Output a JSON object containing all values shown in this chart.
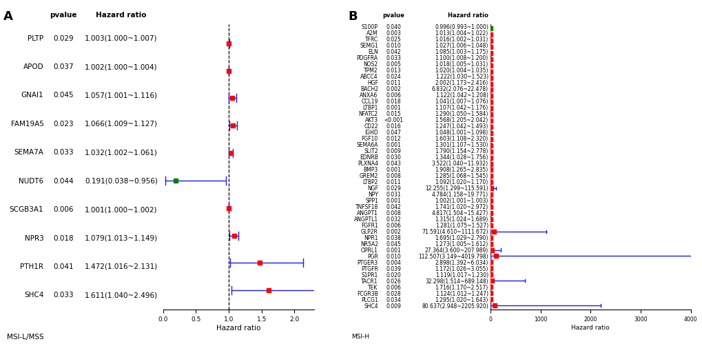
{
  "panel_A": {
    "title": "A",
    "subtitle": "MSI-L/MSS",
    "xlabel": "Hazard ratio",
    "genes": [
      "PLTP",
      "APOD",
      "GNAI1",
      "FAM19A5",
      "SEMA7A",
      "NUDT6",
      "SCGB3A1",
      "NPR3",
      "PTH1R",
      "SHC4"
    ],
    "pvalues": [
      "0.029",
      "0.037",
      "0.045",
      "0.023",
      "0.033",
      "0.044",
      "0.006",
      "0.018",
      "0.041",
      "0.033"
    ],
    "hr_labels": [
      "1.003(1.000~1.007)",
      "1.002(1.000~1.004)",
      "1.057(1.001~1.116)",
      "1.066(1.009~1.127)",
      "1.032(1.002~1.061)",
      "0.191(0.038~0.956)",
      "1.001(1.000~1.002)",
      "1.079(1.013~1.149)",
      "1.472(1.016~2.131)",
      "1.611(1.040~2.496)"
    ],
    "hr": [
      1.003,
      1.002,
      1.057,
      1.066,
      1.032,
      0.191,
      1.001,
      1.079,
      1.472,
      1.611
    ],
    "ci_low": [
      1.0,
      1.0,
      1.001,
      1.009,
      1.002,
      0.038,
      1.0,
      1.013,
      1.016,
      1.04
    ],
    "ci_high": [
      1.007,
      1.004,
      1.116,
      1.127,
      1.061,
      0.956,
      1.002,
      1.149,
      2.131,
      2.496
    ],
    "colors": [
      "red",
      "red",
      "red",
      "red",
      "red",
      "green",
      "red",
      "red",
      "red",
      "red"
    ],
    "xlim": [
      0.0,
      2.3
    ],
    "xticks": [
      0.0,
      0.5,
      1.0,
      1.5,
      2.0
    ],
    "vline": 1.0
  },
  "panel_B": {
    "title": "B",
    "subtitle": "MSI-H",
    "xlabel": "Hazard ratio",
    "genes": [
      "S100P",
      "A2M",
      "TFRC",
      "SEMG1",
      "ELN",
      "PDGFRA",
      "NOS2",
      "TPM2",
      "ABCC4",
      "HGF",
      "BACH2",
      "ANXA6",
      "CCL19",
      "LTBP1",
      "NFATC2",
      "AKT3",
      "CD22",
      "IGHD",
      "FGF10",
      "SEMA6A",
      "SLIT2",
      "EDNRB",
      "PLXNA4",
      "BMP3",
      "GREM2",
      "LTBP2",
      "NGF",
      "NPY",
      "SPP1",
      "TNFSF18",
      "ANGPT1",
      "ANGPTL1",
      "FGFR1",
      "GLP2R",
      "NPR1",
      "NR5A2",
      "OPRL1",
      "PGR",
      "PTGER3",
      "PTGFR",
      "S1PR1",
      "TACR1",
      "TEK",
      "FCGR3B",
      "PLCG1",
      "SHC4"
    ],
    "pvalues": [
      "0.040",
      "0.003",
      "0.025",
      "0.010",
      "0.042",
      "0.033",
      "0.005",
      "0.013",
      "0.024",
      "0.011",
      "0.002",
      "0.006",
      "0.018",
      "0.001",
      "0.015",
      "<0.001",
      "0.016",
      "0.047",
      "0.012",
      "0.001",
      "0.009",
      "0.030",
      "0.043",
      "0.001",
      "0.008",
      "0.011",
      "0.029",
      "0.031",
      "0.001",
      "0.042",
      "0.008",
      "0.032",
      "0.006",
      "0.002",
      "0.038",
      "0.045",
      "0.001",
      "0.010",
      "0.004",
      "0.039",
      "0.020",
      "0.026",
      "0.006",
      "0.028",
      "0.034",
      "0.009"
    ],
    "hr_labels": [
      "0.996(0.993~1.000)",
      "1.013(1.004~1.022)",
      "1.016(1.002~1.031)",
      "1.027(1.006~1.048)",
      "1.085(1.003~1.175)",
      "1.100(1.008~1.200)",
      "1.018(1.005~1.031)",
      "1.020(1.004~1.035)",
      "1.222(1.030~1.523)",
      "2.002(1.173~2.416)",
      "6.832(2.076~22.478)",
      "1.122(1.042~1.208)",
      "1.041(1.007~1.076)",
      "1.107(1.042~1.176)",
      "1.290(1.050~1.584)",
      "1.568(1.205~2.042)",
      "1.247(1.042~1.493)",
      "1.048(1.001~1.098)",
      "1.603(1.108~2.320)",
      "1.301(1.107~1.530)",
      "1.790(1.154~2.778)",
      "1.344(1.028~1.756)",
      "3.522(1.040~11.932)",
      "1.908(1.265~2.835)",
      "1.285(1.068~1.545)",
      "1.092(1.020~1.170)",
      "12.255(1.299~115.591)",
      "4.784(1.158~19.771)",
      "1.002(1.001~1.003)",
      "1.741(1.020~2.972)",
      "4.817(1.504~15.427)",
      "1.315(1.024~1.689)",
      "1.281(1.075~1.527)",
      "71.591(4.610~1111.672)",
      "1.695(1.029~2.790)",
      "1.273(1.005~1.612)",
      "27.364(3.600~207.989)",
      "112.507(3.149~4019.798)",
      "2.898(1.392~6.034)",
      "1.172(1.026~3.055)",
      "1.119(1.017~1.230)",
      "32.298(1.514~689.148)",
      "1.716(1.170~2.517)",
      "1.124(1.012~1.247)",
      "1.295(1.020~1.643)",
      "80.637(2.948~2205.920)"
    ],
    "hr": [
      0.996,
      1.013,
      1.016,
      1.027,
      1.085,
      1.1,
      1.018,
      1.02,
      1.222,
      2.002,
      6.832,
      1.122,
      1.041,
      1.107,
      1.29,
      1.568,
      1.247,
      1.048,
      1.603,
      1.301,
      1.79,
      1.344,
      3.522,
      1.908,
      1.285,
      1.092,
      12.255,
      4.784,
      1.002,
      1.741,
      4.817,
      1.315,
      1.281,
      71.591,
      1.695,
      1.273,
      27.364,
      112.507,
      2.898,
      1.172,
      1.119,
      32.298,
      1.716,
      1.124,
      1.295,
      80.637
    ],
    "ci_low": [
      0.993,
      1.004,
      1.002,
      1.006,
      1.003,
      1.008,
      1.005,
      1.004,
      1.03,
      1.173,
      2.076,
      1.042,
      1.007,
      1.042,
      1.05,
      1.205,
      1.042,
      1.001,
      1.108,
      1.107,
      1.154,
      1.028,
      1.04,
      1.265,
      1.068,
      1.02,
      1.299,
      1.158,
      1.001,
      1.02,
      1.504,
      1.024,
      1.075,
      4.61,
      1.029,
      1.005,
      3.6,
      3.149,
      1.392,
      1.026,
      1.017,
      1.514,
      1.17,
      1.012,
      1.02,
      2.948
    ],
    "ci_high": [
      1.0,
      1.022,
      1.031,
      1.048,
      1.175,
      1.2,
      1.031,
      1.035,
      1.523,
      2.416,
      22.478,
      1.208,
      1.076,
      1.176,
      1.584,
      2.042,
      1.493,
      1.098,
      2.32,
      1.53,
      2.778,
      1.756,
      11.932,
      2.835,
      1.545,
      1.17,
      115.591,
      19.771,
      1.003,
      2.972,
      15.427,
      1.689,
      1.527,
      1111.672,
      2.79,
      1.612,
      207.989,
      4019.798,
      6.034,
      3.055,
      1.23,
      689.148,
      2.517,
      1.247,
      1.643,
      2205.92
    ],
    "colors": [
      "green",
      "red",
      "red",
      "red",
      "red",
      "red",
      "red",
      "red",
      "red",
      "red",
      "red",
      "red",
      "red",
      "red",
      "red",
      "red",
      "red",
      "red",
      "red",
      "red",
      "red",
      "red",
      "red",
      "red",
      "red",
      "red",
      "red",
      "red",
      "red",
      "red",
      "red",
      "red",
      "red",
      "red",
      "red",
      "red",
      "red",
      "red",
      "red",
      "red",
      "red",
      "red",
      "red",
      "red",
      "red",
      "red"
    ],
    "xlim": [
      0,
      4000
    ],
    "xticks": [
      0,
      1000,
      2000,
      3000,
      4000
    ],
    "vline": 1.0
  },
  "bg_color": "#ffffff",
  "linewidth": 1.0,
  "font_size_A": 7.5,
  "font_size_B": 5.5,
  "title_fontsize": 13
}
